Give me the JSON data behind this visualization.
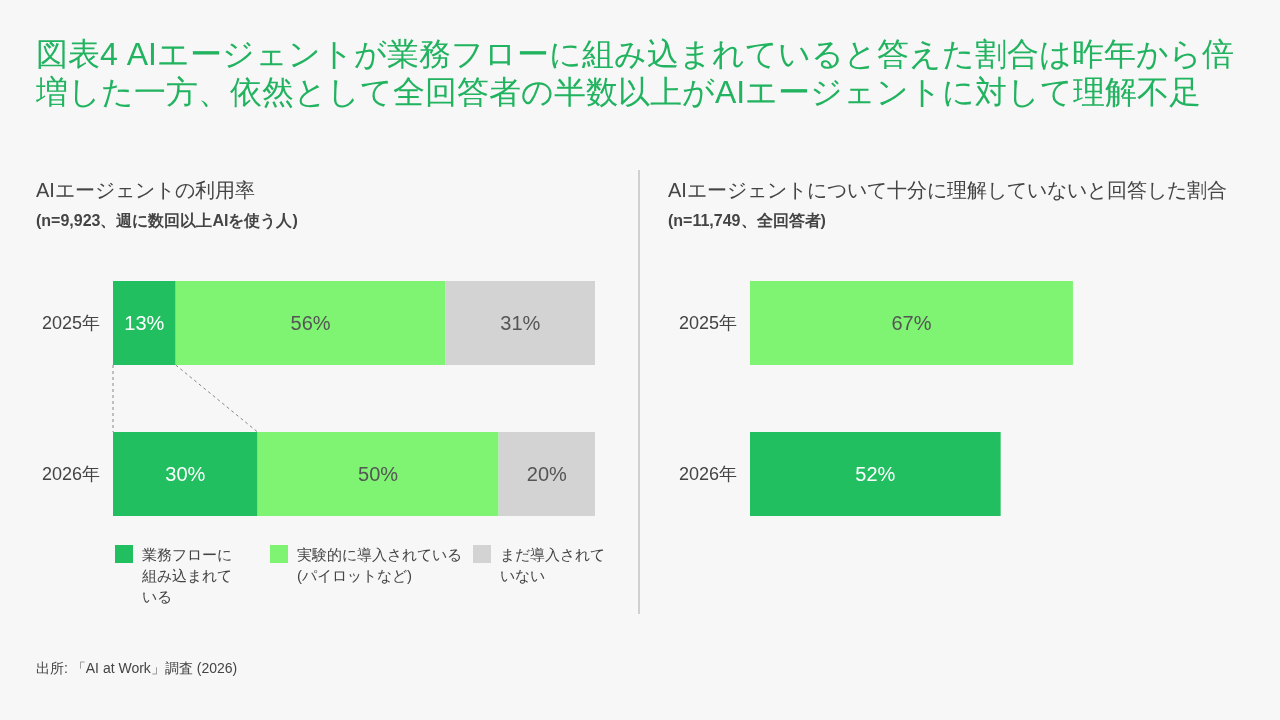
{
  "chart_data": [
    {
      "type": "bar",
      "orientation": "horizontal",
      "stacked": true,
      "title": "AIエージェントの利用率",
      "subtitle": "(n=9,923、週に数回以上AIを使う人)",
      "categories": [
        "2025年",
        "2026年"
      ],
      "legend": "bottom",
      "series": [
        {
          "name": "業務フローに組み込まれている",
          "color": "#21bf60",
          "values": [
            13,
            30
          ],
          "value_labels": [
            "13%",
            "30%"
          ]
        },
        {
          "name": "実験的に導入されている(パイロットなど)",
          "color": "#7ef472",
          "values": [
            56,
            50
          ],
          "value_labels": [
            "56%",
            "50%"
          ]
        },
        {
          "name": "まだ導入されていない",
          "color": "#d3d3d3",
          "values": [
            31,
            20
          ],
          "value_labels": [
            "31%",
            "20%"
          ]
        }
      ],
      "annotations": [
        "図表4  AIエージェントが業務フローに組み込まれていると答えた割合は昨年から倍増した一方、依然として全回答者の半数以上がAIエージェントに対して理解不足",
        "出所: 「AI at Work」調査 (2026)"
      ]
    },
    {
      "type": "bar",
      "orientation": "horizontal",
      "title": "AIエージェントについて十分に理解していないと回答した割合",
      "subtitle": "(n=11,749、全回答者)",
      "categories": [
        "2025年",
        "2026年"
      ],
      "values": [
        67,
        52
      ],
      "colors": [
        "#7ef472",
        "#21bf60"
      ],
      "value_labels": [
        "67%",
        "52%"
      ]
    }
  ]
}
